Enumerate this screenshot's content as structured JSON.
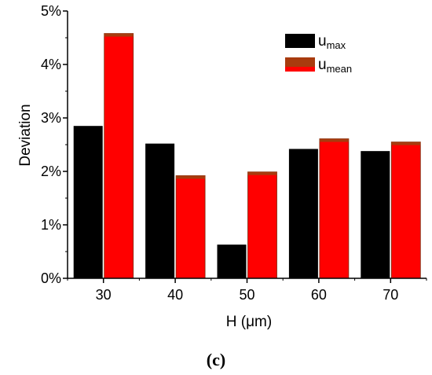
{
  "chart_data": {
    "type": "bar",
    "categories": [
      "30",
      "40",
      "50",
      "60",
      "70"
    ],
    "series": [
      {
        "name": "max",
        "values": [
          2.85,
          2.52,
          0.63,
          2.42,
          2.38
        ]
      },
      {
        "name": "mean",
        "values": [
          4.58,
          1.92,
          1.99,
          2.61,
          2.55
        ]
      }
    ],
    "legend_prefix": "u",
    "colors": {
      "max": "#000000",
      "mean": "#ff0000",
      "mean_top": "#a83b0e"
    },
    "xlabel": "H (μm)",
    "ylabel": "Deviation",
    "ylim": [
      0,
      5
    ],
    "yticks": [
      "0%",
      "1%",
      "2%",
      "3%",
      "4%",
      "5%"
    ],
    "legend_position": "top-right",
    "grid": false,
    "caption": "(c)"
  }
}
